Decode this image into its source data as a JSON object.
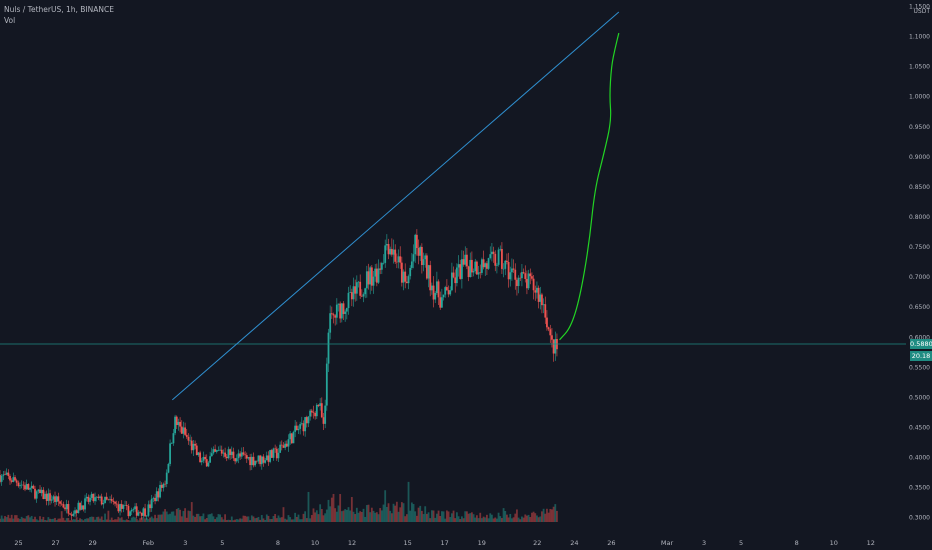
{
  "header": {
    "title": "Nuls / TetherUS, 1h, BINANCE",
    "volume_label": "Vol"
  },
  "chart_data": {
    "type": "candlestick",
    "symbol": "Nuls / TetherUS",
    "interval": "1h",
    "exchange": "BINANCE",
    "y_unit": "USDT",
    "ylim": [
      0.292,
      1.16
    ],
    "y_ticks": [
      0.3,
      0.35,
      0.4,
      0.45,
      0.5,
      0.55,
      0.6,
      0.65,
      0.7,
      0.75,
      0.8,
      0.85,
      0.9,
      0.95,
      1.0,
      1.05,
      1.1,
      1.15
    ],
    "y_tick_labels": [
      "0.3000",
      "0.3500",
      "0.4000",
      "0.4500",
      "0.5000",
      "0.5500",
      "0.6000",
      "0.6500",
      "0.7000",
      "0.7500",
      "0.8000",
      "0.8500",
      "0.9000",
      "0.9500",
      "1.0000",
      "1.0500",
      "1.1000",
      "1.1500"
    ],
    "x_range": [
      "Jan 24",
      "Mar 13"
    ],
    "x_tick_labels": [
      {
        "day": 25,
        "label": "25"
      },
      {
        "day": 27,
        "label": "27"
      },
      {
        "day": 29,
        "label": "29"
      },
      {
        "day": 32,
        "label": "Feb"
      },
      {
        "day": 34,
        "label": "3"
      },
      {
        "day": 36,
        "label": "5"
      },
      {
        "day": 39,
        "label": "8"
      },
      {
        "day": 41,
        "label": "10"
      },
      {
        "day": 43,
        "label": "12"
      },
      {
        "day": 46,
        "label": "15"
      },
      {
        "day": 48,
        "label": "17"
      },
      {
        "day": 50,
        "label": "19"
      },
      {
        "day": 53,
        "label": "22"
      },
      {
        "day": 55,
        "label": "24"
      },
      {
        "day": 57,
        "label": "26"
      },
      {
        "day": 60,
        "label": "Mar"
      },
      {
        "day": 62,
        "label": "3"
      },
      {
        "day": 64,
        "label": "5"
      },
      {
        "day": 67,
        "label": "8"
      },
      {
        "day": 69,
        "label": "10"
      },
      {
        "day": 71,
        "label": "12"
      }
    ],
    "price_path": [
      [
        24.0,
        0.37
      ],
      [
        25.0,
        0.36
      ],
      [
        26.0,
        0.34
      ],
      [
        27.0,
        0.33
      ],
      [
        28.0,
        0.31
      ],
      [
        29.0,
        0.33
      ],
      [
        30.0,
        0.325
      ],
      [
        31.0,
        0.31
      ],
      [
        32.0,
        0.31
      ],
      [
        33.0,
        0.36
      ],
      [
        33.5,
        0.46
      ],
      [
        34.0,
        0.44
      ],
      [
        35.0,
        0.39
      ],
      [
        36.0,
        0.41
      ],
      [
        37.0,
        0.4
      ],
      [
        38.0,
        0.395
      ],
      [
        39.0,
        0.405
      ],
      [
        40.0,
        0.44
      ],
      [
        40.8,
        0.465
      ],
      [
        41.3,
        0.49
      ],
      [
        41.6,
        0.44
      ],
      [
        41.8,
        0.62
      ],
      [
        42.5,
        0.65
      ],
      [
        43.0,
        0.66
      ],
      [
        43.5,
        0.68
      ],
      [
        44.0,
        0.7
      ],
      [
        44.5,
        0.71
      ],
      [
        45.0,
        0.76
      ],
      [
        45.5,
        0.73
      ],
      [
        46.0,
        0.68
      ],
      [
        46.5,
        0.75
      ],
      [
        47.0,
        0.72
      ],
      [
        47.5,
        0.68
      ],
      [
        48.0,
        0.66
      ],
      [
        48.5,
        0.69
      ],
      [
        49.0,
        0.715
      ],
      [
        49.5,
        0.72
      ],
      [
        50.0,
        0.72
      ],
      [
        50.5,
        0.72
      ],
      [
        51.0,
        0.73
      ],
      [
        51.5,
        0.71
      ],
      [
        52.0,
        0.7
      ],
      [
        52.5,
        0.69
      ],
      [
        53.0,
        0.68
      ],
      [
        53.5,
        0.65
      ],
      [
        53.8,
        0.59
      ],
      [
        54.1,
        0.58
      ]
    ],
    "volume_path": [
      [
        24.0,
        5
      ],
      [
        26.0,
        4
      ],
      [
        28.0,
        3
      ],
      [
        30.0,
        4
      ],
      [
        32.0,
        3
      ],
      [
        33.5,
        12
      ],
      [
        35.0,
        6
      ],
      [
        37.0,
        4
      ],
      [
        40.0,
        6
      ],
      [
        41.0,
        9
      ],
      [
        42.0,
        22
      ],
      [
        43.0,
        10
      ],
      [
        45.0,
        12
      ],
      [
        46.0,
        14
      ],
      [
        47.0,
        10
      ],
      [
        48.0,
        8
      ],
      [
        50.0,
        6
      ],
      [
        52.0,
        6
      ],
      [
        53.5,
        9
      ],
      [
        54.1,
        14
      ]
    ],
    "current_price": 0.588,
    "current_price_label": "0.5880",
    "current_volume_label": "20.18",
    "annotations": {
      "trend_line": {
        "from": [
          33.3,
          0.495
        ],
        "to": [
          57.4,
          1.14
        ]
      },
      "projection_curve": [
        [
          54.2,
          0.595
        ],
        [
          54.8,
          0.615
        ],
        [
          55.3,
          0.665
        ],
        [
          55.8,
          0.755
        ],
        [
          56.1,
          0.845
        ],
        [
          56.6,
          0.905
        ],
        [
          57.0,
          0.96
        ],
        [
          56.9,
          1.0
        ],
        [
          57.0,
          1.05
        ],
        [
          57.2,
          1.08
        ],
        [
          57.4,
          1.105
        ]
      ]
    },
    "colors": {
      "up": "#26a69a",
      "down": "#ef5350",
      "trend_line": "#2f8fcf",
      "projection": "#22d424",
      "current_price": "#1f8c82",
      "background": "#131722"
    },
    "grid": false
  }
}
